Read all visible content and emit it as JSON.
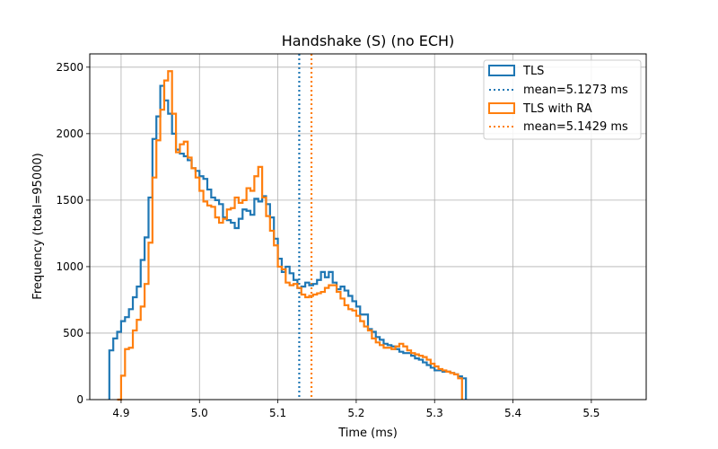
{
  "chart_data": {
    "type": "histogram",
    "title": "Handshake (S) (no ECH)",
    "xlabel": "Time (ms)",
    "ylabel": "Frequency (total=95000)",
    "xlim": [
      4.86,
      5.57
    ],
    "ylim": [
      0,
      2600
    ],
    "xticks": [
      4.9,
      5.0,
      5.1,
      5.2,
      5.3,
      5.4,
      5.5
    ],
    "xtick_labels": [
      "4.9",
      "5.0",
      "5.1",
      "5.2",
      "5.3",
      "5.4",
      "5.5"
    ],
    "yticks": [
      0,
      500,
      1000,
      1500,
      2000,
      2500
    ],
    "ytick_labels": [
      "0",
      "500",
      "1000",
      "1500",
      "2000",
      "2500"
    ],
    "grid": true,
    "legend_position": "top-right",
    "bin_width": 0.005,
    "series": [
      {
        "name": "TLS",
        "color": "#1f77b4",
        "x_start": 4.885,
        "values": [
          370,
          460,
          510,
          590,
          620,
          680,
          770,
          850,
          1050,
          1220,
          1520,
          1960,
          2130,
          2360,
          2250,
          2150,
          2000,
          1880,
          1850,
          1830,
          1800,
          1740,
          1720,
          1680,
          1660,
          1580,
          1520,
          1500,
          1470,
          1370,
          1350,
          1330,
          1290,
          1360,
          1430,
          1420,
          1390,
          1510,
          1490,
          1530,
          1470,
          1370,
          1210,
          1060,
          960,
          1000,
          950,
          900,
          840,
          850,
          880,
          860,
          870,
          900,
          960,
          920,
          960,
          880,
          830,
          850,
          820,
          780,
          740,
          700,
          640,
          640,
          530,
          510,
          470,
          450,
          420,
          410,
          400,
          380,
          360,
          350,
          350,
          330,
          310,
          300,
          280,
          260,
          240,
          220,
          220,
          210,
          210,
          200,
          190,
          175,
          160
        ]
      },
      {
        "name": "TLS with RA",
        "color": "#ff7f0e",
        "x_start": 4.895,
        "values": [
          0,
          180,
          380,
          390,
          520,
          600,
          700,
          870,
          1180,
          1670,
          1950,
          2180,
          2400,
          2470,
          2150,
          1860,
          1920,
          1940,
          1820,
          1740,
          1670,
          1570,
          1490,
          1460,
          1450,
          1370,
          1330,
          1360,
          1430,
          1440,
          1520,
          1480,
          1500,
          1590,
          1570,
          1680,
          1750,
          1520,
          1380,
          1270,
          1160,
          1000,
          980,
          880,
          860,
          870,
          840,
          790,
          770,
          780,
          790,
          800,
          810,
          840,
          860,
          860,
          810,
          760,
          710,
          680,
          670,
          630,
          590,
          550,
          520,
          460,
          430,
          410,
          390,
          390,
          380,
          400,
          420,
          400,
          370,
          350,
          340,
          330,
          320,
          300,
          270,
          250,
          230,
          220,
          210,
          200,
          190,
          160
        ]
      }
    ],
    "mean_lines": [
      {
        "label": "mean=5.1273 ms",
        "value": 5.1273,
        "color": "#1f77b4",
        "style": "dotted"
      },
      {
        "label": "mean=5.1429 ms",
        "value": 5.1429,
        "color": "#ff7f0e",
        "style": "dotted"
      }
    ]
  }
}
